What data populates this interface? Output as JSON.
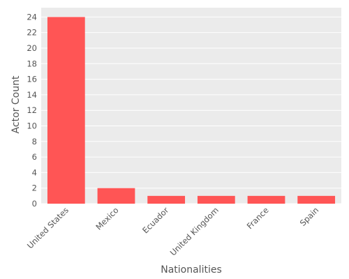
{
  "chart_data": {
    "type": "bar",
    "categories": [
      "United States",
      "Mexico",
      "Ecuador",
      "United Kingdom",
      "France",
      "Spain"
    ],
    "values": [
      24,
      2,
      1,
      1,
      1,
      1
    ],
    "xlabel": "Nationalities",
    "ylabel": "Actor Count",
    "ylim": [
      0,
      25.2
    ],
    "yticks": [
      0,
      2,
      4,
      6,
      8,
      10,
      12,
      14,
      16,
      18,
      20,
      22,
      24
    ],
    "grid": true,
    "bar_color": "#ff5555",
    "background_color": "#ebebeb",
    "grid_color": "#ffffff"
  }
}
